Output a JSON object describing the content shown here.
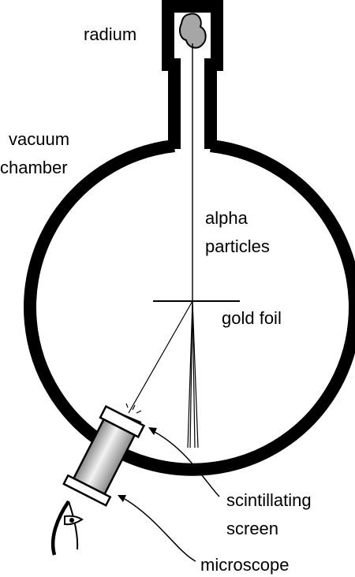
{
  "labels": {
    "radium": "radium",
    "vacuum_chamber": [
      "vacuum",
      "chamber"
    ],
    "alpha_particles": [
      "alpha",
      "particles"
    ],
    "gold_foil": "gold foil",
    "scintillating_screen": [
      "scintillating",
      "screen"
    ],
    "microscope": "microscope"
  },
  "colors": {
    "ink": "#000000",
    "background": "#ffffff",
    "radium_sample": "#a6a6a6",
    "microscope_tube_light": "#f2f2f2",
    "microscope_tube_dark": "#8a8a8a"
  }
}
